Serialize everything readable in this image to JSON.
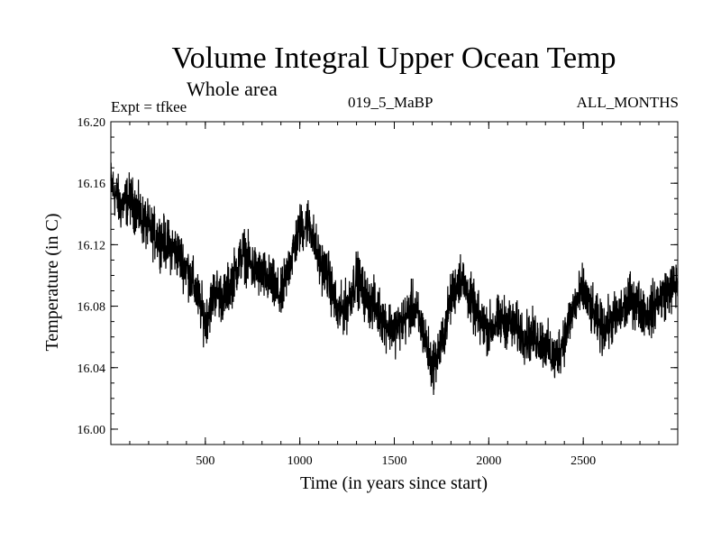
{
  "header": {
    "title": "Volume Integral Upper Ocean Temp",
    "subtitle": "Whole area",
    "expt": "Expt = tfkee",
    "run": "019_5_MaBP",
    "months": "ALL_MONTHS"
  },
  "chart_data": {
    "type": "line",
    "title": "Volume Integral Upper Ocean Temp",
    "subtitle": "Whole area",
    "xlabel": "Time (in years since start)",
    "ylabel": "Temperature (in C)",
    "xlim": [
      0,
      3000
    ],
    "ylim": [
      15.99,
      16.2
    ],
    "x_ticks": [
      "500",
      "1000",
      "1500",
      "2000",
      "2500"
    ],
    "y_ticks": [
      "16.00",
      "16.04",
      "16.08",
      "16.12",
      "16.16",
      "16.20"
    ],
    "grid": false,
    "series": [
      {
        "x": [
          0,
          50,
          100,
          150,
          200,
          250,
          300,
          350,
          400,
          450,
          500,
          550,
          600,
          650,
          700,
          750,
          800,
          850,
          900,
          950,
          1000,
          1050,
          1100,
          1150,
          1200,
          1250,
          1300,
          1350,
          1400,
          1450,
          1500,
          1550,
          1600,
          1650,
          1700,
          1750,
          1800,
          1850,
          1900,
          1950,
          2000,
          2050,
          2100,
          2150,
          2200,
          2250,
          2300,
          2350,
          2400,
          2450,
          2500,
          2550,
          2600,
          2650,
          2700,
          2750,
          2800,
          2850,
          2900,
          2950,
          3000
        ],
        "y": [
          16.16,
          16.145,
          16.15,
          16.14,
          16.13,
          16.125,
          16.12,
          16.115,
          16.105,
          16.09,
          16.07,
          16.09,
          16.085,
          16.1,
          16.115,
          16.105,
          16.1,
          16.095,
          16.085,
          16.11,
          16.13,
          16.135,
          16.11,
          16.1,
          16.075,
          16.08,
          16.1,
          16.085,
          16.08,
          16.07,
          16.065,
          16.07,
          16.08,
          16.065,
          16.04,
          16.055,
          16.085,
          16.1,
          16.085,
          16.07,
          16.065,
          16.07,
          16.07,
          16.065,
          16.06,
          16.06,
          16.055,
          16.045,
          16.06,
          16.08,
          16.09,
          16.075,
          16.065,
          16.07,
          16.075,
          16.085,
          16.08,
          16.075,
          16.085,
          16.09,
          16.095
        ],
        "spread": 0.008
      }
    ]
  }
}
